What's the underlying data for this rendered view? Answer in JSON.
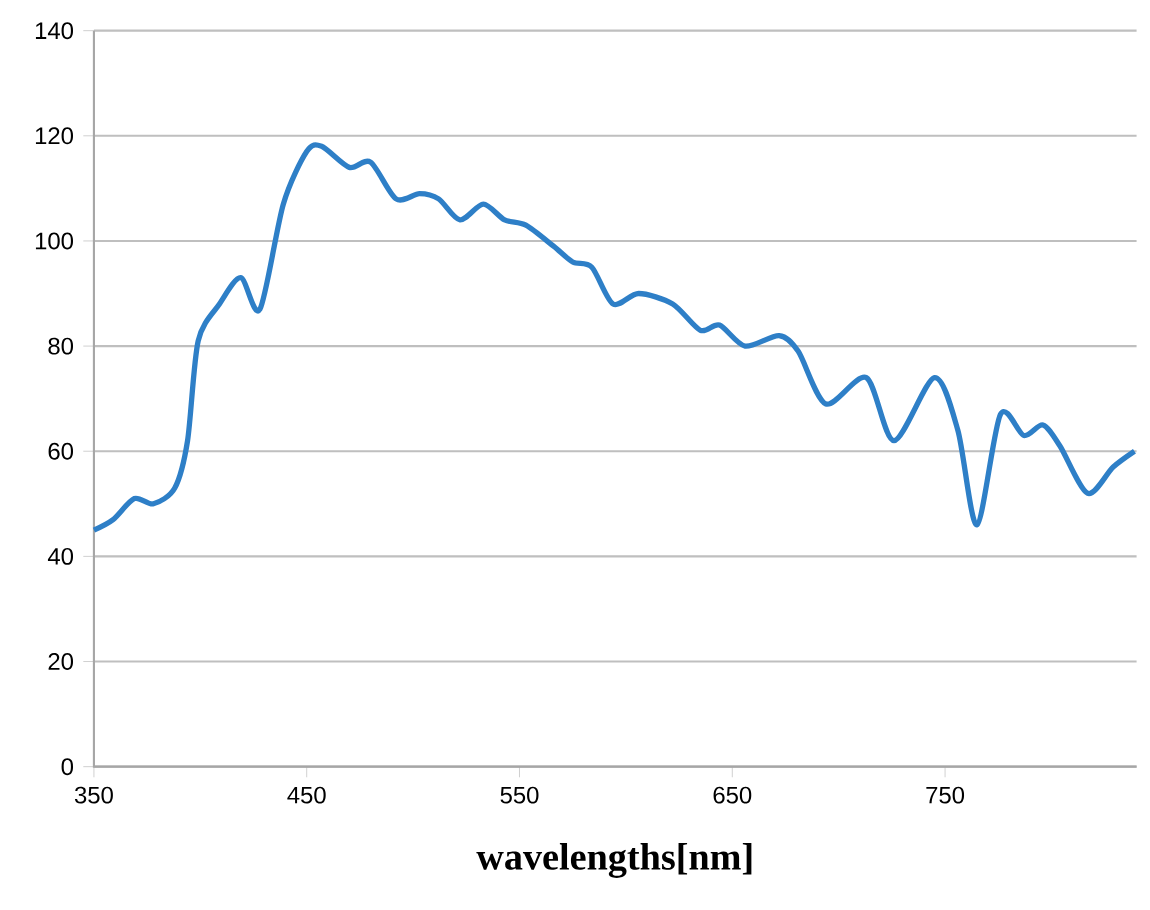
{
  "chart_data": {
    "type": "line",
    "xlabel": "wavelengths[nm]",
    "x": [
      350,
      359,
      369,
      378,
      388,
      394,
      399,
      409,
      419,
      428,
      439,
      450,
      457,
      470,
      480,
      492,
      503,
      512,
      522,
      533,
      543,
      553,
      566,
      575,
      584,
      594,
      606,
      622,
      635,
      644,
      656,
      672,
      681,
      694,
      713,
      726,
      745,
      756,
      765,
      776,
      787,
      796,
      804,
      817,
      829,
      839
    ],
    "series": [
      {
        "color": "#2e7fc7",
        "values": [
          45,
          47,
          51,
          50,
          53,
          62,
          81,
          88,
          93,
          87,
          107,
          117,
          118,
          114,
          115,
          108,
          109,
          108,
          104,
          107,
          104,
          103,
          99,
          96,
          95,
          88,
          90,
          88,
          83,
          84,
          80,
          82,
          79,
          69,
          74,
          62,
          74,
          64,
          46,
          67,
          63,
          65,
          61,
          52,
          57,
          60
        ]
      }
    ],
    "xlim": [
      350,
      840
    ],
    "ylim": [
      0,
      140
    ],
    "xticks": [
      350,
      450,
      550,
      650,
      750
    ],
    "yticks": [
      0,
      20,
      40,
      60,
      80,
      100,
      120,
      140
    ],
    "grid": "y",
    "marker": "none",
    "line_style": "solid"
  }
}
